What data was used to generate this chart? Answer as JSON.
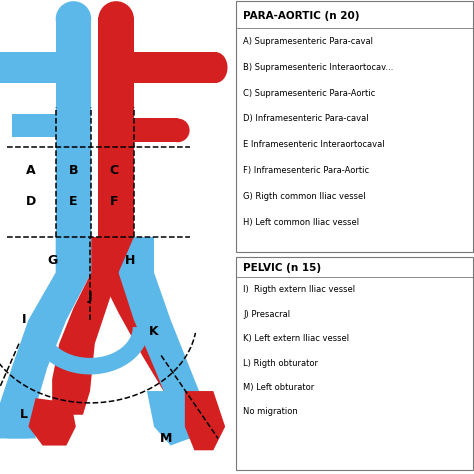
{
  "para_aortic_title": "PARA-AORTIC (n 20)",
  "para_aortic_items": [
    "A) Supramesenteric Para-caval",
    "B) Supramesenteric Interaortocav...",
    "C) Supramesenteric Para-Aortic",
    "D) Inframesenteric Para-caval",
    "E Inframesenteric Interaortocaval",
    "F) Inframesenteric Para-Aortic",
    "G) Rigth common Iliac vessel",
    "H) Left common Iliac vessel"
  ],
  "pelvic_title": "PELVIC (n 15)",
  "pelvic_items": [
    "I)  Rigth extern Iliac vessel",
    "J) Presacral",
    "K) Left extern Iliac vessel",
    "L) Rigth obturator",
    "M) Left obturator",
    "No migration"
  ],
  "blue_color": "#5BB8E8",
  "red_color": "#D42020",
  "label_color": "black",
  "bg_color": "white"
}
